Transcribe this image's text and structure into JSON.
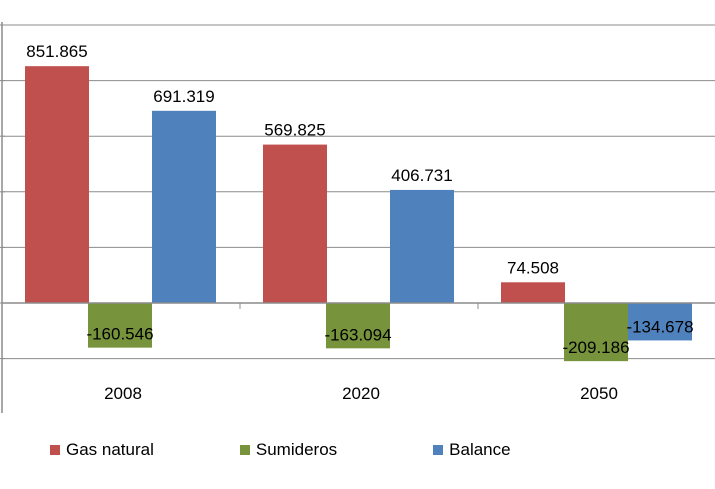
{
  "chart_data": {
    "type": "bar",
    "title": "",
    "xlabel": "",
    "ylabel": "",
    "categories": [
      "2008",
      "2020",
      "2050"
    ],
    "series": [
      {
        "name": "Gas natural",
        "color": "#c0504d",
        "values": [
          851865,
          569825,
          74508
        ],
        "labels": [
          "851.865",
          "569.825",
          "74.508"
        ]
      },
      {
        "name": "Sumideros",
        "color": "#77933c",
        "values": [
          -160546,
          -163094,
          -209186
        ],
        "labels": [
          "-160.546",
          "-163.094",
          "-209.186"
        ]
      },
      {
        "name": "Balance",
        "color": "#4f81bd",
        "values": [
          691319,
          406731,
          -134678
        ],
        "labels": [
          "691.319",
          "406.731",
          "-134.678"
        ]
      }
    ],
    "ylim": [
      -400000,
      1000000
    ],
    "ytick_step": 200000,
    "grid": true,
    "legend_position": "bottom"
  }
}
